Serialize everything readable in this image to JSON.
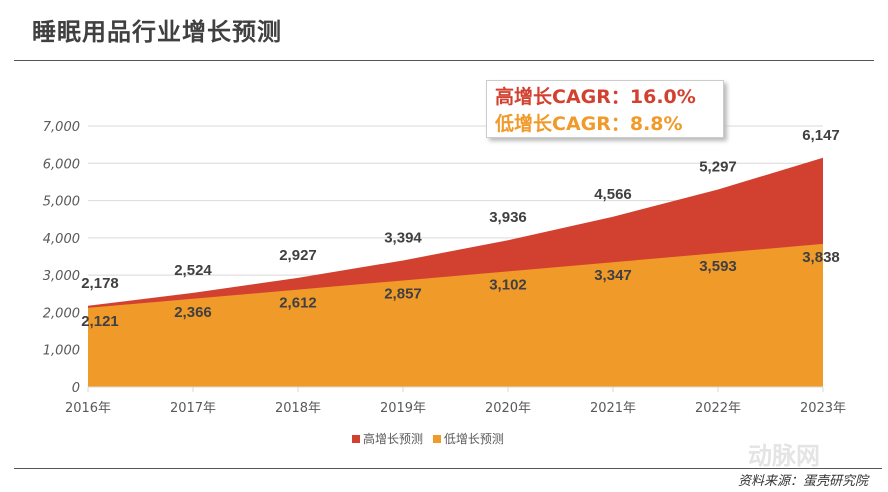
{
  "title": "睡眠用品行业增长预测",
  "source": "资料来源：蛋壳研究院",
  "watermark": "动脉网",
  "cagr": {
    "high": "高增长CAGR：16.0%",
    "low": "低增长CAGR：8.8%"
  },
  "chart_data": {
    "type": "area",
    "categories": [
      "2016年",
      "2017年",
      "2018年",
      "2019年",
      "2020年",
      "2021年",
      "2022年",
      "2023年"
    ],
    "series": [
      {
        "name": "高增长预测",
        "values": [
          2178,
          2524,
          2927,
          3394,
          3936,
          4566,
          5297,
          6147
        ],
        "color": "#d24130"
      },
      {
        "name": "低增长预测",
        "values": [
          2121,
          2366,
          2612,
          2857,
          3102,
          3347,
          3593,
          3838
        ],
        "color": "#f09a2a"
      }
    ],
    "ylim": [
      0,
      7000
    ],
    "yticks": [
      "0",
      "1,000",
      "2,000",
      "3,000",
      "4,000",
      "5,000",
      "6,000",
      "7,000"
    ],
    "grid": true,
    "legend": "bottom"
  }
}
